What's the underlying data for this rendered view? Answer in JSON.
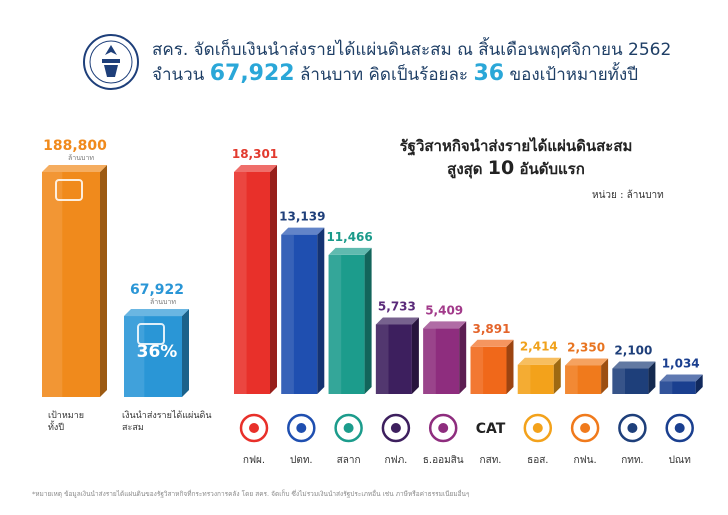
{
  "header": {
    "line1": "สคร. จัดเก็บเงินนำส่งรายได้แผ่นดินสะสม ณ สิ้นเดือนพฤศจิกายน 2562",
    "line2_pre": "จำนวน",
    "line2_amount": "67,922",
    "line2_mid": "ล้านบาท คิดเป็นร้อยละ",
    "line2_pct": "36",
    "line2_post": "ของเป้าหมายทั้งปี"
  },
  "chart_data": [
    {
      "type": "bar",
      "categories": [
        "เป้าหมาย ทั้งปี",
        "เงินนำส่งรายได้แผ่นดิน สะสม"
      ],
      "values": [
        188800,
        67922
      ],
      "value_labels": [
        "188,800",
        "67,922"
      ],
      "unit_small": "ล้านบาท",
      "annotation": "36%",
      "colors": [
        "#f08a1c",
        "#2a96d6"
      ]
    },
    {
      "type": "bar",
      "title": "รัฐวิสาหกิจนำส่งรายได้แผ่นดินสะสม",
      "subtitle_pre": "สูงสุด",
      "subtitle_num": "10",
      "subtitle_post": "อันดับแรก",
      "unit": "หน่วย : ล้านบาท",
      "categories": [
        "กฟผ.",
        "ปตท.",
        "สลาก",
        "กฟภ.",
        "ธ.ออมสิน",
        "กสท.",
        "ธอส.",
        "กฟน.",
        "กทท.",
        "ปณท"
      ],
      "values": [
        18301,
        13139,
        11466,
        5733,
        5409,
        3891,
        2414,
        2350,
        2100,
        1034
      ],
      "value_labels": [
        "18,301",
        "13,139",
        "11,466",
        "5,733",
        "5,409",
        "3,891",
        "2,414",
        "2,350",
        "2,100",
        "1,034"
      ],
      "colors": [
        "#e8302a",
        "#1f4fb0",
        "#1c9c8c",
        "#3d1f5e",
        "#8e2d7e",
        "#f0681a",
        "#f3a21b",
        "#f07a1c",
        "#1e3f7a",
        "#1a3f8f"
      ],
      "label_colors": [
        "#e23a2e",
        "#1f3f7a",
        "#1a9a8a",
        "#5a2a7a",
        "#a23a8a",
        "#e4642a",
        "#f0a21b",
        "#e87420",
        "#1e3f7a",
        "#1a3f8f"
      ],
      "logo_text": {
        "กสท.": "CAT"
      }
    }
  ],
  "footnote": "*หมายเหตุ ข้อมูลเงินนำส่งรายได้แผ่นดินของรัฐวิสาหกิจที่กระทรวงการคลัง โดย สคร. จัดเก็บ ซึ่งไม่รวมเงินนำส่งรัฐประเภทอื่น เช่น ภาษีหรือค่าธรรมเนียมอื่นๆ"
}
